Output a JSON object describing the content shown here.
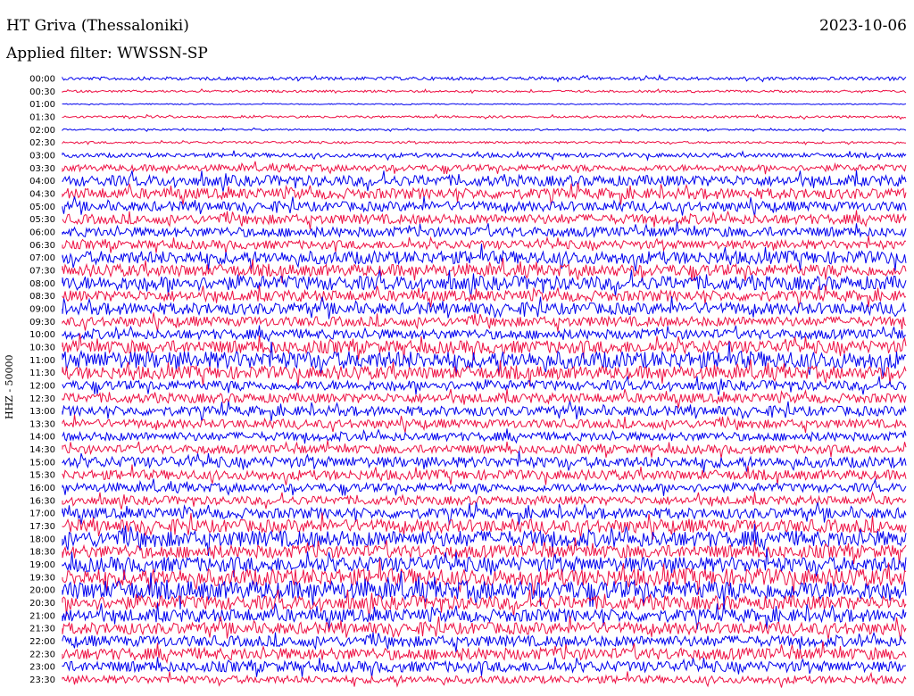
{
  "header": {
    "station": "HT Griva (Thessaloniki)",
    "date": "2023-10-06",
    "filter": "Applied filter: WWSSN-SP"
  },
  "ylabel": "HHZ - 50000",
  "colors": {
    "trace_a": "#0000ee",
    "trace_b": "#ee1144",
    "text": "#000000"
  },
  "chart_data": {
    "type": "line",
    "title": "HT Griva (Thessaloniki)",
    "subtitle": "Applied filter: WWSSN-SP",
    "ylabel": "HHZ - 50000",
    "xlabel": "",
    "grid": false,
    "trace_minutes": 30,
    "series": [
      {
        "time": "00:00",
        "color": "blue",
        "amplitude": 0.3
      },
      {
        "time": "00:30",
        "color": "red",
        "amplitude": 0.2
      },
      {
        "time": "01:00",
        "color": "blue",
        "amplitude": 0.1
      },
      {
        "time": "01:30",
        "color": "red",
        "amplitude": 0.2
      },
      {
        "time": "02:00",
        "color": "blue",
        "amplitude": 0.15
      },
      {
        "time": "02:30",
        "color": "red",
        "amplitude": 0.2
      },
      {
        "time": "03:00",
        "color": "blue",
        "amplitude": 0.4
      },
      {
        "time": "03:30",
        "color": "red",
        "amplitude": 0.6
      },
      {
        "time": "04:00",
        "color": "blue",
        "amplitude": 1.0
      },
      {
        "time": "04:30",
        "color": "red",
        "amplitude": 1.0
      },
      {
        "time": "05:00",
        "color": "blue",
        "amplitude": 0.9
      },
      {
        "time": "05:30",
        "color": "red",
        "amplitude": 0.9
      },
      {
        "time": "06:00",
        "color": "blue",
        "amplitude": 0.9
      },
      {
        "time": "06:30",
        "color": "red",
        "amplitude": 0.8
      },
      {
        "time": "07:00",
        "color": "blue",
        "amplitude": 1.2
      },
      {
        "time": "07:30",
        "color": "red",
        "amplitude": 1.1
      },
      {
        "time": "08:00",
        "color": "blue",
        "amplitude": 1.3
      },
      {
        "time": "08:30",
        "color": "red",
        "amplitude": 1.0
      },
      {
        "time": "09:00",
        "color": "blue",
        "amplitude": 1.1
      },
      {
        "time": "09:30",
        "color": "red",
        "amplitude": 0.9
      },
      {
        "time": "10:00",
        "color": "blue",
        "amplitude": 0.9
      },
      {
        "time": "10:30",
        "color": "red",
        "amplitude": 1.2
      },
      {
        "time": "11:00",
        "color": "blue",
        "amplitude": 1.6
      },
      {
        "time": "11:30",
        "color": "red",
        "amplitude": 1.2
      },
      {
        "time": "12:00",
        "color": "blue",
        "amplitude": 0.9
      },
      {
        "time": "12:30",
        "color": "red",
        "amplitude": 0.9
      },
      {
        "time": "13:00",
        "color": "blue",
        "amplitude": 0.9
      },
      {
        "time": "13:30",
        "color": "red",
        "amplitude": 0.8
      },
      {
        "time": "14:00",
        "color": "blue",
        "amplitude": 0.8
      },
      {
        "time": "14:30",
        "color": "red",
        "amplitude": 0.8
      },
      {
        "time": "15:00",
        "color": "blue",
        "amplitude": 1.0
      },
      {
        "time": "15:30",
        "color": "red",
        "amplitude": 0.9
      },
      {
        "time": "16:00",
        "color": "blue",
        "amplitude": 0.8
      },
      {
        "time": "16:30",
        "color": "red",
        "amplitude": 0.8
      },
      {
        "time": "17:00",
        "color": "blue",
        "amplitude": 1.0
      },
      {
        "time": "17:30",
        "color": "red",
        "amplitude": 1.2
      },
      {
        "time": "18:00",
        "color": "blue",
        "amplitude": 1.5
      },
      {
        "time": "18:30",
        "color": "red",
        "amplitude": 1.2
      },
      {
        "time": "19:00",
        "color": "blue",
        "amplitude": 1.4
      },
      {
        "time": "19:30",
        "color": "red",
        "amplitude": 1.6
      },
      {
        "time": "20:00",
        "color": "blue",
        "amplitude": 1.7
      },
      {
        "time": "20:30",
        "color": "red",
        "amplitude": 1.3
      },
      {
        "time": "21:00",
        "color": "blue",
        "amplitude": 1.2
      },
      {
        "time": "21:30",
        "color": "red",
        "amplitude": 1.1
      },
      {
        "time": "22:00",
        "color": "blue",
        "amplitude": 1.0
      },
      {
        "time": "22:30",
        "color": "red",
        "amplitude": 1.1
      },
      {
        "time": "23:00",
        "color": "blue",
        "amplitude": 1.0
      },
      {
        "time": "23:30",
        "color": "red",
        "amplitude": 0.7
      }
    ]
  }
}
